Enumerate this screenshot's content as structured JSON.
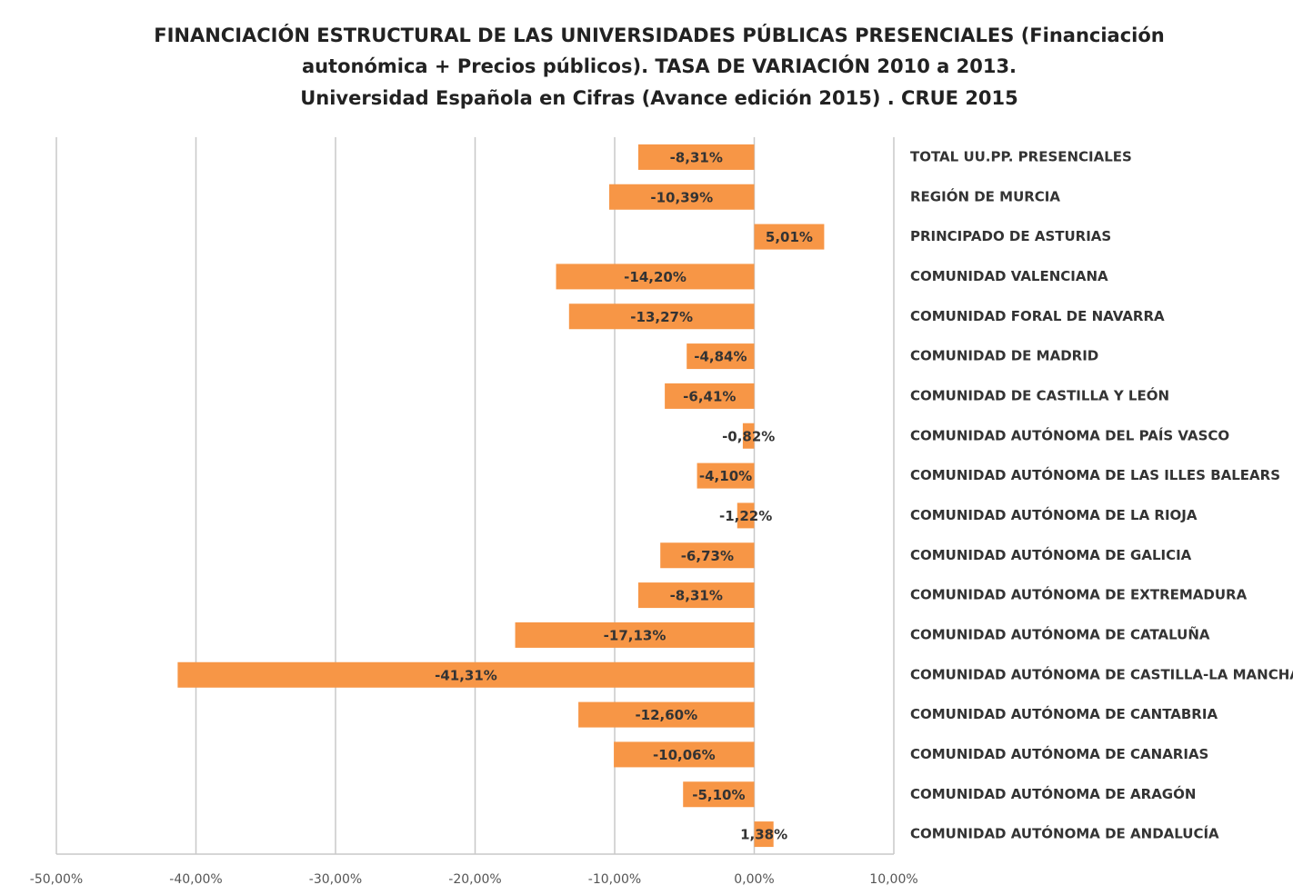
{
  "chart_data": {
    "type": "barh",
    "title": [
      "FINANCIACIÓN ESTRUCTURAL DE LAS UNIVERSIDADES PÚBLICAS PRESENCIALES (Financiación",
      "autonómica + Precios públicos).  TASA DE VARIACIÓN 2010 a 2013.",
      "Universidad Española en Cifras  (Avance edición 2015) . CRUE 2015"
    ],
    "categories": [
      "TOTAL UU.PP. PRESENCIALES",
      "REGIÓN DE MURCIA",
      "PRINCIPADO DE ASTURIAS",
      "COMUNIDAD VALENCIANA",
      "COMUNIDAD FORAL DE NAVARRA",
      "COMUNIDAD DE MADRID",
      "COMUNIDAD DE CASTILLA Y LEÓN",
      "COMUNIDAD AUTÓNOMA DEL PAÍS VASCO",
      "COMUNIDAD AUTÓNOMA DE LAS ILLES BALEARS",
      "COMUNIDAD AUTÓNOMA DE LA RIOJA",
      "COMUNIDAD AUTÓNOMA DE GALICIA",
      "COMUNIDAD AUTÓNOMA DE EXTREMADURA",
      "COMUNIDAD AUTÓNOMA DE CATALUÑA",
      "COMUNIDAD AUTÓNOMA DE CASTILLA-LA MANCHA",
      "COMUNIDAD AUTÓNOMA DE CANTABRIA",
      "COMUNIDAD AUTÓNOMA DE CANARIAS",
      "COMUNIDAD AUTÓNOMA DE ARAGÓN",
      "COMUNIDAD AUTÓNOMA DE ANDALUCÍA"
    ],
    "values": [
      -8.31,
      -10.39,
      5.01,
      -14.2,
      -13.27,
      -4.84,
      -6.41,
      -0.82,
      -4.1,
      -1.22,
      -6.73,
      -8.31,
      -17.13,
      -41.31,
      -12.6,
      -10.06,
      -5.1,
      1.38
    ],
    "value_labels": [
      "-8,31%",
      "-10,39%",
      "5,01%",
      "-14,20%",
      "-13,27%",
      "-4,84%",
      "-6,41%",
      "-0,82%",
      "-4,10%",
      "-1,22%",
      "-6,73%",
      "-8,31%",
      "-17,13%",
      "-41,31%",
      "-12,60%",
      "-10,06%",
      "-5,10%",
      "1,38%"
    ],
    "color": "#f79646",
    "xlim": [
      -50,
      10
    ],
    "xticks": [
      {
        "value": -50,
        "label": "-50,00%"
      },
      {
        "value": -40,
        "label": "-40,00%"
      },
      {
        "value": -30,
        "label": "-30,00%"
      },
      {
        "value": -20,
        "label": "-20,00%"
      },
      {
        "value": -10,
        "label": "-10,00%"
      },
      {
        "value": 0,
        "label": "0,00%"
      },
      {
        "value": 10,
        "label": "10,00%"
      }
    ],
    "grid": true
  }
}
